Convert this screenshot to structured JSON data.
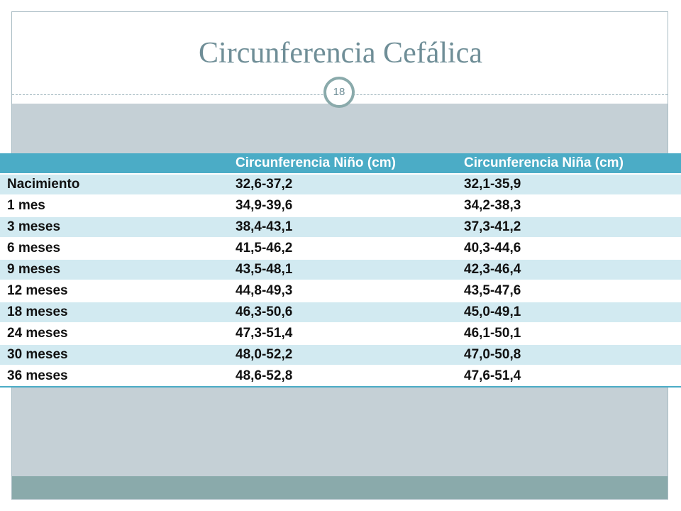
{
  "slide": {
    "title": "Circunferencia Cefálica",
    "page_number": "18"
  },
  "table": {
    "headers": [
      "",
      "Circunferencia Niño (cm)",
      "Circunferencia Niña (cm)"
    ],
    "rows": [
      [
        "Nacimiento",
        "32,6-37,2",
        "32,1-35,9"
      ],
      [
        "1 mes",
        "34,9-39,6",
        "34,2-38,3"
      ],
      [
        "3 meses",
        "38,4-43,1",
        "37,3-41,2"
      ],
      [
        "6 meses",
        "41,5-46,2",
        "40,3-44,6"
      ],
      [
        "9 meses",
        "43,5-48,1",
        "42,3-46,4"
      ],
      [
        "12 meses",
        "44,8-49,3",
        "43,5-47,6"
      ],
      [
        "18 meses",
        "46,3-50,6",
        "45,0-49,1"
      ],
      [
        "24 meses",
        "47,3-51,4",
        "46,1-50,1"
      ],
      [
        "30 meses",
        "48,0-52,2",
        "47,0-50,8"
      ],
      [
        "36 meses",
        "48,6-52,8",
        "47,6-51,4"
      ]
    ]
  }
}
